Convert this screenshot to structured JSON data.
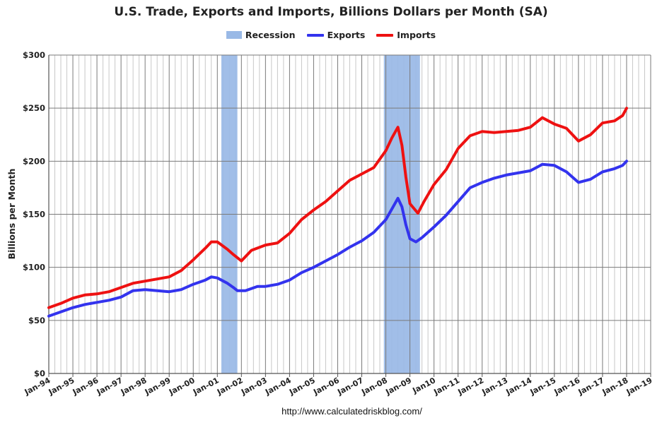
{
  "chart_data": {
    "type": "line",
    "title": "U.S. Trade, Exports and Imports, Billions Dollars per Month (SA)",
    "ylabel": "Billions per Month",
    "xlabel": "",
    "source": "http://www.calculatedriskblog.com/",
    "ylim": [
      0,
      300
    ],
    "xlim": [
      "1994-01",
      "2019-01"
    ],
    "y_ticks": [
      "$0",
      "$50",
      "$100",
      "$150",
      "$200",
      "$250",
      "$300"
    ],
    "x_ticks": [
      "Jan-94",
      "Jan-95",
      "Jan-96",
      "Jan-97",
      "Jan-98",
      "Jan-99",
      "Jan-00",
      "Jan-01",
      "Jan-02",
      "Jan-03",
      "Jan-04",
      "Jan-05",
      "Jan-06",
      "Jan-07",
      "Jan-08",
      "Jan-09",
      "Jan10",
      "Jan-11",
      "Jan-12",
      "Jan-13",
      "Jan-14",
      "Jan-15",
      "Jan-16",
      "Jan-17",
      "Jan-18",
      "Jan-19"
    ],
    "grid": true,
    "legend_position": "top-center",
    "legend": [
      {
        "name": "Recession",
        "color": "#99b9e6",
        "kind": "box"
      },
      {
        "name": "Exports",
        "color": "#3333ee",
        "kind": "line"
      },
      {
        "name": "Imports",
        "color": "#ee1111",
        "kind": "line"
      }
    ],
    "recessions": [
      {
        "start": "2001-03",
        "end": "2001-11"
      },
      {
        "start": "2007-12",
        "end": "2009-06"
      }
    ],
    "series": [
      {
        "name": "Exports",
        "color": "#3333ee",
        "points": [
          [
            "1994-01",
            54
          ],
          [
            "1994-07",
            58
          ],
          [
            "1995-01",
            62
          ],
          [
            "1995-07",
            65
          ],
          [
            "1996-01",
            67
          ],
          [
            "1996-07",
            69
          ],
          [
            "1997-01",
            72
          ],
          [
            "1997-07",
            78
          ],
          [
            "1998-01",
            79
          ],
          [
            "1998-07",
            78
          ],
          [
            "1999-01",
            77
          ],
          [
            "1999-07",
            79
          ],
          [
            "2000-01",
            84
          ],
          [
            "2000-07",
            88
          ],
          [
            "2000-10",
            91
          ],
          [
            "2001-01",
            90
          ],
          [
            "2001-06",
            85
          ],
          [
            "2001-09",
            81
          ],
          [
            "2001-11",
            78
          ],
          [
            "2002-03",
            78
          ],
          [
            "2002-09",
            82
          ],
          [
            "2003-01",
            82
          ],
          [
            "2003-07",
            84
          ],
          [
            "2004-01",
            88
          ],
          [
            "2004-07",
            95
          ],
          [
            "2005-01",
            100
          ],
          [
            "2005-07",
            106
          ],
          [
            "2006-01",
            112
          ],
          [
            "2006-07",
            119
          ],
          [
            "2007-01",
            125
          ],
          [
            "2007-07",
            133
          ],
          [
            "2008-01",
            145
          ],
          [
            "2008-04",
            155
          ],
          [
            "2008-07",
            165
          ],
          [
            "2008-09",
            157
          ],
          [
            "2008-11",
            140
          ],
          [
            "2009-01",
            127
          ],
          [
            "2009-04",
            124
          ],
          [
            "2009-07",
            128
          ],
          [
            "2010-01",
            138
          ],
          [
            "2010-07",
            149
          ],
          [
            "2011-01",
            162
          ],
          [
            "2011-07",
            175
          ],
          [
            "2012-01",
            180
          ],
          [
            "2012-07",
            184
          ],
          [
            "2013-01",
            187
          ],
          [
            "2013-07",
            189
          ],
          [
            "2014-01",
            191
          ],
          [
            "2014-07",
            197
          ],
          [
            "2015-01",
            196
          ],
          [
            "2015-07",
            190
          ],
          [
            "2016-01",
            180
          ],
          [
            "2016-07",
            183
          ],
          [
            "2017-01",
            190
          ],
          [
            "2017-07",
            193
          ],
          [
            "2017-11",
            196
          ],
          [
            "2018-01",
            200
          ]
        ]
      },
      {
        "name": "Imports",
        "color": "#ee1111",
        "points": [
          [
            "1994-01",
            62
          ],
          [
            "1994-07",
            66
          ],
          [
            "1995-01",
            71
          ],
          [
            "1995-07",
            74
          ],
          [
            "1996-01",
            75
          ],
          [
            "1996-07",
            77
          ],
          [
            "1997-01",
            81
          ],
          [
            "1997-07",
            85
          ],
          [
            "1998-01",
            87
          ],
          [
            "1998-07",
            89
          ],
          [
            "1999-01",
            91
          ],
          [
            "1999-07",
            97
          ],
          [
            "2000-01",
            107
          ],
          [
            "2000-07",
            118
          ],
          [
            "2000-10",
            124
          ],
          [
            "2001-01",
            124
          ],
          [
            "2001-06",
            117
          ],
          [
            "2001-09",
            112
          ],
          [
            "2002-01",
            106
          ],
          [
            "2002-06",
            116
          ],
          [
            "2003-01",
            121
          ],
          [
            "2003-07",
            123
          ],
          [
            "2004-01",
            132
          ],
          [
            "2004-07",
            145
          ],
          [
            "2005-01",
            154
          ],
          [
            "2005-07",
            162
          ],
          [
            "2006-01",
            172
          ],
          [
            "2006-07",
            182
          ],
          [
            "2007-01",
            188
          ],
          [
            "2007-07",
            194
          ],
          [
            "2008-01",
            210
          ],
          [
            "2008-04",
            222
          ],
          [
            "2008-07",
            232
          ],
          [
            "2008-09",
            215
          ],
          [
            "2008-11",
            185
          ],
          [
            "2009-01",
            160
          ],
          [
            "2009-05",
            151
          ],
          [
            "2009-08",
            162
          ],
          [
            "2010-01",
            178
          ],
          [
            "2010-07",
            192
          ],
          [
            "2011-01",
            212
          ],
          [
            "2011-07",
            224
          ],
          [
            "2012-01",
            228
          ],
          [
            "2012-07",
            227
          ],
          [
            "2013-01",
            228
          ],
          [
            "2013-07",
            229
          ],
          [
            "2014-01",
            232
          ],
          [
            "2014-07",
            241
          ],
          [
            "2015-01",
            235
          ],
          [
            "2015-07",
            231
          ],
          [
            "2016-01",
            219
          ],
          [
            "2016-07",
            225
          ],
          [
            "2017-01",
            236
          ],
          [
            "2017-07",
            238
          ],
          [
            "2017-11",
            243
          ],
          [
            "2018-01",
            250
          ]
        ]
      }
    ]
  }
}
